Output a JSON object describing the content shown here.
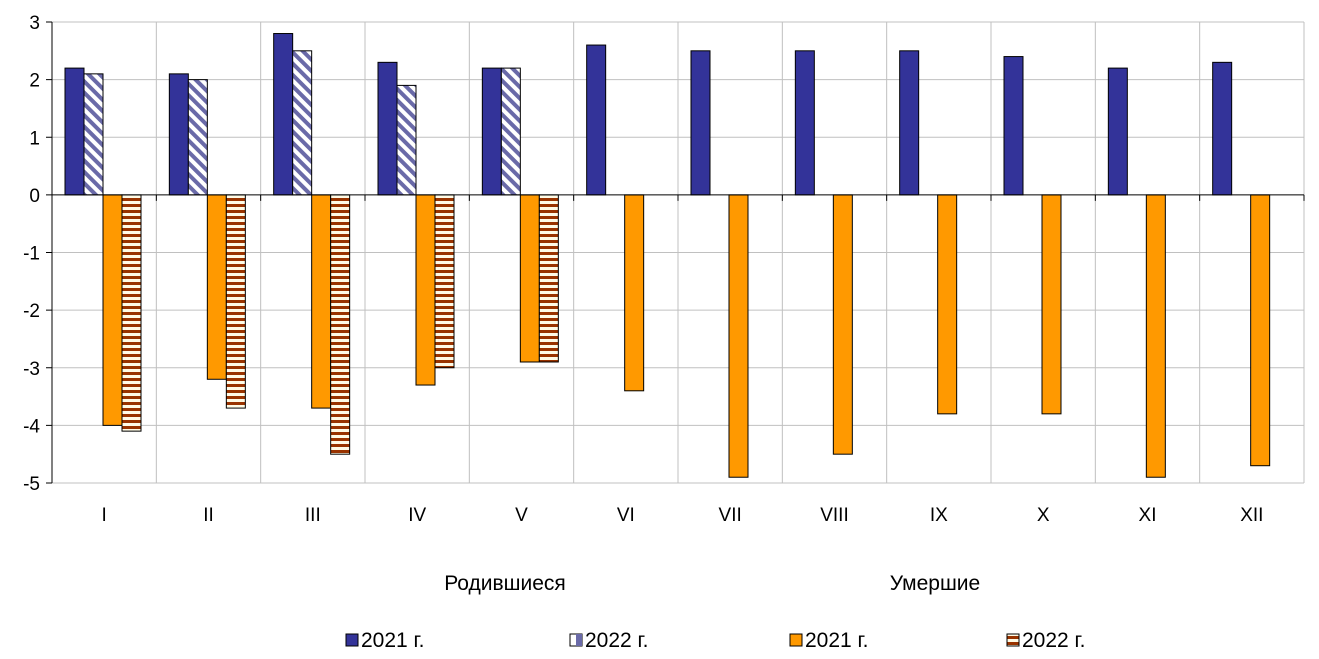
{
  "chart_data": {
    "type": "bar",
    "categories": [
      "I",
      "II",
      "III",
      "IV",
      "V",
      "VI",
      "VII",
      "VIII",
      "IX",
      "X",
      "XI",
      "XII"
    ],
    "series": [
      {
        "name": "2021 г.",
        "group": "Родившиеся",
        "color": "#333399",
        "pattern": "solid",
        "values": [
          2.2,
          2.1,
          2.8,
          2.3,
          2.2,
          2.6,
          2.5,
          2.5,
          2.5,
          2.4,
          2.2,
          2.3
        ]
      },
      {
        "name": "2022 г.",
        "group": "Родившиеся",
        "color": "#333399",
        "pattern": "diagonal",
        "values": [
          2.1,
          2.0,
          2.5,
          1.9,
          2.2,
          null,
          null,
          null,
          null,
          null,
          null,
          null
        ]
      },
      {
        "name": "2021 г.",
        "group": "Умершие",
        "color": "#FF9900",
        "pattern": "solid",
        "values": [
          -4.0,
          -3.2,
          -3.7,
          -3.3,
          -2.9,
          -3.4,
          -4.9,
          -4.5,
          -3.8,
          -3.8,
          -4.9,
          -4.7
        ]
      },
      {
        "name": "2022 г.",
        "group": "Умершие",
        "color": "#993300",
        "pattern": "horizontal",
        "values": [
          -4.1,
          -3.7,
          -4.5,
          -3.0,
          -2.9,
          null,
          null,
          null,
          null,
          null,
          null,
          null
        ]
      }
    ],
    "ylim": [
      -5,
      3
    ],
    "yticks": [
      "3",
      "2",
      "1",
      "0",
      "-1",
      "-2",
      "-3",
      "-4",
      "-5"
    ],
    "group_labels": [
      "Родившиеся",
      "Умершие"
    ],
    "grid": true,
    "legend": "bottom"
  }
}
